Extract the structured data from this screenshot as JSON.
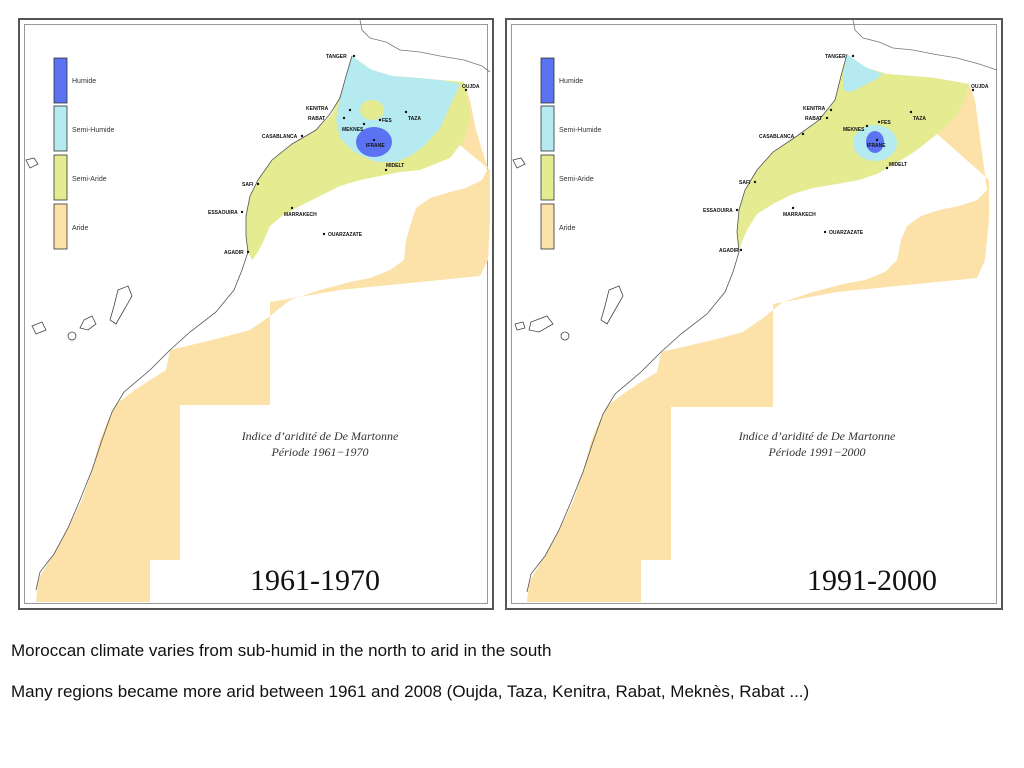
{
  "legend": {
    "items": [
      {
        "key": "humide",
        "label": "Humide",
        "color": "#5b73f2"
      },
      {
        "key": "semi_humide",
        "label": "Semi-Humide",
        "color": "#b4eaf0"
      },
      {
        "key": "semi_aride",
        "label": "Semi-Aride",
        "color": "#e4eb91"
      },
      {
        "key": "aride",
        "label": "Aride",
        "color": "#fce2a8"
      }
    ]
  },
  "cities": {
    "tanger": "TANGER",
    "oujda": "OUJDA",
    "kenitra": "KENITRA",
    "rabat": "RABAT",
    "meknes": "MEKNES",
    "fes": "FES",
    "taza": "TAZA",
    "casablanca": "CASABLANCA",
    "ifrane": "IFRANE",
    "midelt": "MIDELT",
    "safi": "SAFI",
    "essaouira": "ESSAOUIRA",
    "marrakech": "MARRAKECH",
    "ouarzazate": "OUARZAZATE",
    "agadir": "AGADIR"
  },
  "maps": [
    {
      "index_title": "Indice d’aridité de De Martonne",
      "period_subtitle": "Période 1961−1970",
      "period_label": "1961-1970"
    },
    {
      "index_title": "Indice d’aridité de De Martonne",
      "period_subtitle": "Période 1991−2000",
      "period_label": "1991-2000"
    }
  ],
  "captions": {
    "line1": "Moroccan climate varies from sub-humid in the north to arid in the south",
    "line2": "Many regions became more arid between 1961 and 2008 (Oujda, Taza, Kenitra, Rabat, Meknès, Rabat ...)"
  }
}
